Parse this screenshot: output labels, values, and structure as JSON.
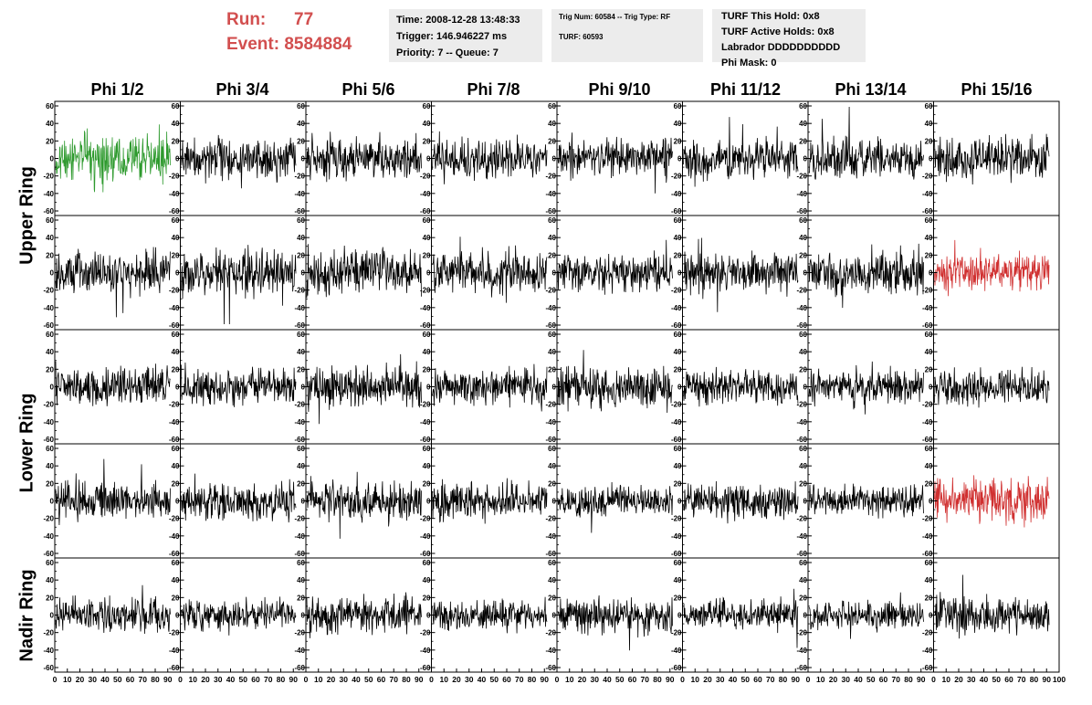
{
  "header": {
    "run_label": "Run:",
    "run_value": "77",
    "event_label": "Event:",
    "event_value": "8584884",
    "time": "Time: 2008-12-28 13:48:33",
    "trigger": "Trigger: 146.946227 ms",
    "priority": "Priority: 7 -- Queue: 7",
    "trig_num": "Trig Num: 60584 -- Trig Type: RF",
    "turf": "TURF: 60593",
    "turf_hold": "TURF This Hold: 0x8",
    "turf_active": "TURF Active Holds: 0x8",
    "labrador": "Labrador DDDDDDDDDD",
    "phi_mask": "Phi Mask: 0"
  },
  "columns": [
    "Phi 1/2",
    "Phi 3/4",
    "Phi 5/6",
    "Phi 7/8",
    "Phi 9/10",
    "Phi 11/12",
    "Phi 13/14",
    "Phi 15/16"
  ],
  "rings": [
    "Upper Ring",
    "Lower Ring",
    "Nadir Ring"
  ],
  "colors": {
    "normal": "#000000",
    "green": "#2e9a2e",
    "red": "#d03030",
    "header_red": "#d24f4f"
  },
  "chart_data": {
    "type": "line",
    "grid_rows": 5,
    "grid_cols": 8,
    "ylim": [
      -60,
      60
    ],
    "xlim": [
      0,
      100
    ],
    "y_ticks": [
      -60,
      -40,
      -20,
      0,
      20,
      40,
      60
    ],
    "x_tick_label_strings": [
      "0",
      "10",
      "20",
      "30",
      "40",
      "50",
      "60",
      "70",
      "80",
      "90",
      "100"
    ],
    "highlight": [
      {
        "row": 0,
        "col": 0,
        "color": "green"
      },
      {
        "row": 1,
        "col": 7,
        "color": "red"
      },
      {
        "row": 3,
        "col": 7,
        "color": "red"
      }
    ],
    "approx_amplitude": [
      [
        20,
        16,
        18,
        16,
        17,
        15,
        16,
        18
      ],
      [
        17,
        18,
        18,
        17,
        16,
        17,
        17,
        15
      ],
      [
        16,
        15,
        17,
        15,
        17,
        14,
        14,
        14
      ],
      [
        15,
        16,
        16,
        15,
        13,
        14,
        13,
        18
      ],
      [
        14,
        13,
        15,
        12,
        14,
        12,
        12,
        15
      ]
    ]
  }
}
